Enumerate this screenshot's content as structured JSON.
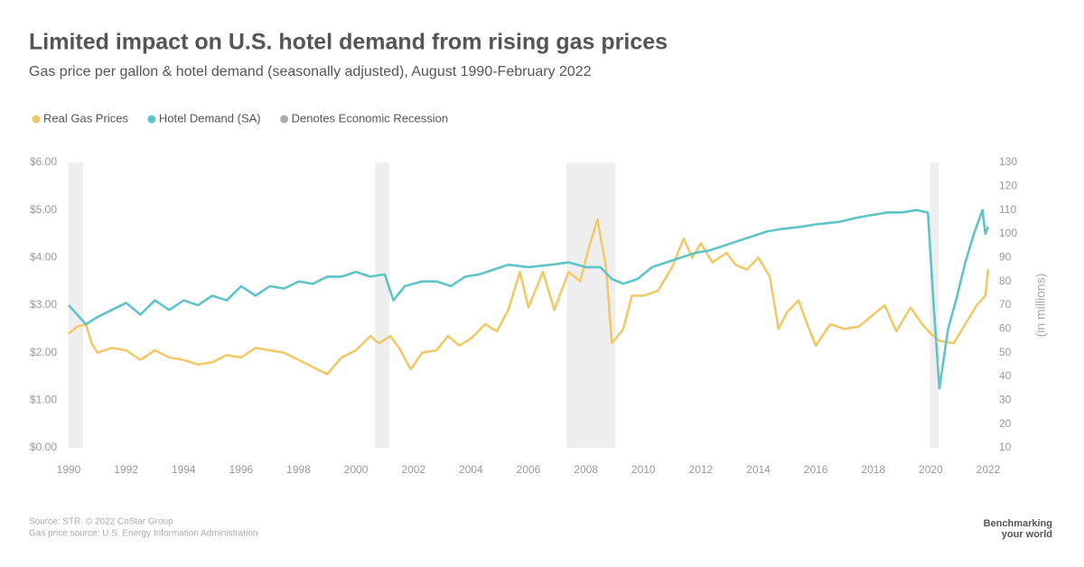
{
  "chart_data": {
    "type": "line",
    "title": "Limited impact on U.S. hotel demand from rising gas prices",
    "subtitle": "Gas price per gallon & hotel demand (seasonally adjusted), August 1990-February 2022",
    "y2_label": "(in millions)",
    "recession_label": "Denotes Economic Recession",
    "recession_color": "#eeeeee",
    "recession_legend_color": "#aaaaaa",
    "recessions": [
      [
        1990.0,
        1990.5
      ],
      [
        2000.66,
        2001.16
      ],
      [
        2007.33,
        2009.03
      ],
      [
        2019.97,
        2020.28
      ]
    ],
    "source": "Source: STR. © 2022 CoStar Group",
    "source2": "Gas price source: U.S. Energy Information Administration",
    "logo": [
      "Benchmarking",
      "your world"
    ],
    "xlim": [
      1990,
      2022
    ],
    "xticks": [
      1990,
      1992,
      1994,
      1996,
      1998,
      2000,
      2002,
      2004,
      2006,
      2008,
      2010,
      2012,
      2014,
      2016,
      2018,
      2020,
      2022
    ],
    "ylim": [
      0,
      6
    ],
    "yticks": [
      {
        "value": 0,
        "label": "$0.00"
      },
      {
        "value": 1,
        "label": "$1.00"
      },
      {
        "value": 2,
        "label": "$2.00"
      },
      {
        "value": 3,
        "label": "$3.00"
      },
      {
        "value": 4,
        "label": "$4.00"
      },
      {
        "value": 5,
        "label": "$5.00"
      },
      {
        "value": 6,
        "label": "$6.00"
      }
    ],
    "y2lim": [
      10,
      130
    ],
    "y2ticks": [
      10,
      20,
      30,
      40,
      50,
      60,
      70,
      80,
      90,
      100,
      110,
      120,
      130
    ],
    "series": [
      {
        "name": "Real Gas Prices",
        "color": "#f0c96a",
        "x": [
          1990.0,
          1990.3,
          1990.6,
          1990.8,
          1991.0,
          1991.5,
          1992.0,
          1992.5,
          1993.0,
          1993.5,
          1994.0,
          1994.5,
          1995.0,
          1995.5,
          1996.0,
          1996.5,
          1997.0,
          1997.5,
          1998.0,
          1998.5,
          1999.0,
          1999.5,
          2000.0,
          2000.5,
          2000.8,
          2001.2,
          2001.5,
          2001.9,
          2002.3,
          2002.8,
          2003.2,
          2003.6,
          2004.0,
          2004.5,
          2004.9,
          2005.3,
          2005.7,
          2006.0,
          2006.5,
          2006.9,
          2007.4,
          2007.8,
          2008.1,
          2008.4,
          2008.7,
          2008.9,
          2009.3,
          2009.6,
          2010.0,
          2010.5,
          2010.8,
          2011.0,
          2011.4,
          2011.7,
          2012.0,
          2012.4,
          2012.9,
          2013.2,
          2013.6,
          2014.0,
          2014.4,
          2014.7,
          2015.0,
          2015.4,
          2015.7,
          2016.0,
          2016.5,
          2017.0,
          2017.5,
          2018.0,
          2018.4,
          2018.8,
          2019.3,
          2019.7,
          2020.0,
          2020.3,
          2020.8,
          2021.2,
          2021.6,
          2021.9,
          2022.0
        ],
        "values": [
          2.4,
          2.55,
          2.6,
          2.2,
          2.0,
          2.1,
          2.05,
          1.85,
          2.05,
          1.9,
          1.85,
          1.75,
          1.8,
          1.95,
          1.9,
          2.1,
          2.05,
          2.0,
          1.85,
          1.7,
          1.55,
          1.9,
          2.05,
          2.35,
          2.2,
          2.35,
          2.1,
          1.65,
          2.0,
          2.05,
          2.35,
          2.15,
          2.3,
          2.6,
          2.45,
          2.9,
          3.7,
          2.95,
          3.7,
          2.9,
          3.7,
          3.5,
          4.2,
          4.8,
          3.8,
          2.2,
          2.5,
          3.2,
          3.2,
          3.3,
          3.6,
          3.8,
          4.4,
          4.0,
          4.3,
          3.9,
          4.1,
          3.85,
          3.75,
          4.0,
          3.6,
          2.5,
          2.85,
          3.1,
          2.6,
          2.15,
          2.6,
          2.5,
          2.55,
          2.8,
          3.0,
          2.45,
          2.95,
          2.6,
          2.4,
          2.25,
          2.2,
          2.6,
          3.0,
          3.2,
          3.75
        ]
      },
      {
        "name": "Hotel Demand (SA)",
        "color": "#5fc4c8",
        "axis": "y2",
        "x": [
          1990.0,
          1990.3,
          1990.6,
          1991.0,
          1991.5,
          1992.0,
          1992.5,
          1993.0,
          1993.5,
          1994.0,
          1994.5,
          1995.0,
          1995.5,
          1996.0,
          1996.5,
          1997.0,
          1997.5,
          1998.0,
          1998.5,
          1999.0,
          1999.5,
          2000.0,
          2000.5,
          2001.0,
          2001.3,
          2001.7,
          2002.3,
          2002.8,
          2003.3,
          2003.8,
          2004.3,
          2004.8,
          2005.3,
          2006.0,
          2006.8,
          2007.4,
          2008.0,
          2008.5,
          2008.9,
          2009.3,
          2009.8,
          2010.3,
          2010.8,
          2011.3,
          2011.8,
          2012.3,
          2012.8,
          2013.3,
          2013.8,
          2014.3,
          2014.8,
          2015.5,
          2016.0,
          2016.8,
          2017.5,
          2018.0,
          2018.5,
          2019.0,
          2019.5,
          2019.9,
          2020.1,
          2020.3,
          2020.6,
          2020.9,
          2021.2,
          2021.5,
          2021.8,
          2021.9,
          2022.0
        ],
        "values": [
          70,
          66,
          62,
          65,
          68,
          71,
          66,
          72,
          68,
          72,
          70,
          74,
          72,
          78,
          74,
          78,
          77,
          80,
          79,
          82,
          82,
          84,
          82,
          83,
          72,
          78,
          80,
          80,
          78,
          82,
          83,
          85,
          87,
          86,
          87,
          88,
          86,
          86,
          81,
          79,
          81,
          86,
          88,
          90,
          92,
          93,
          95,
          97,
          99,
          101,
          102,
          103,
          104,
          105,
          107,
          108,
          109,
          109,
          110,
          109,
          70,
          35,
          60,
          73,
          88,
          100,
          110,
          100,
          103
        ]
      }
    ]
  }
}
